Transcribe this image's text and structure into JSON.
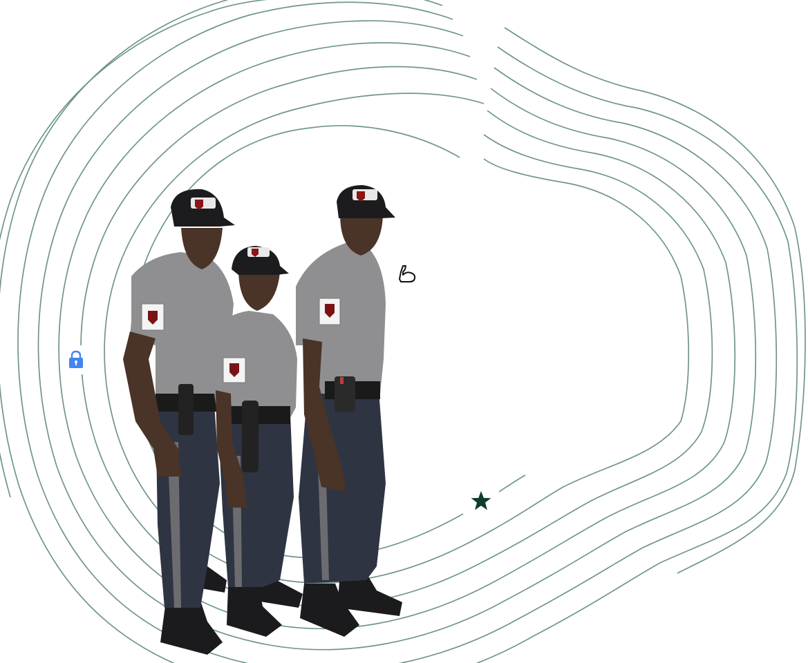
{
  "scene": {
    "subject": "",
    "background_color": "#ffffff",
    "ring_color": "#6f958b"
  },
  "uniform": {
    "shirt_color": "#8f8f91",
    "trouser_color": "#2e3442",
    "cap_color": "#1c1c1e",
    "stripe_color": "#6c6c70"
  },
  "icons": {
    "lock": {
      "name": "lock-icon",
      "color": "#4285f4"
    },
    "arm": {
      "name": "flexed-arm-icon",
      "color": "#111111"
    },
    "star": {
      "name": "star-icon",
      "color": "#0f3d2c"
    }
  }
}
